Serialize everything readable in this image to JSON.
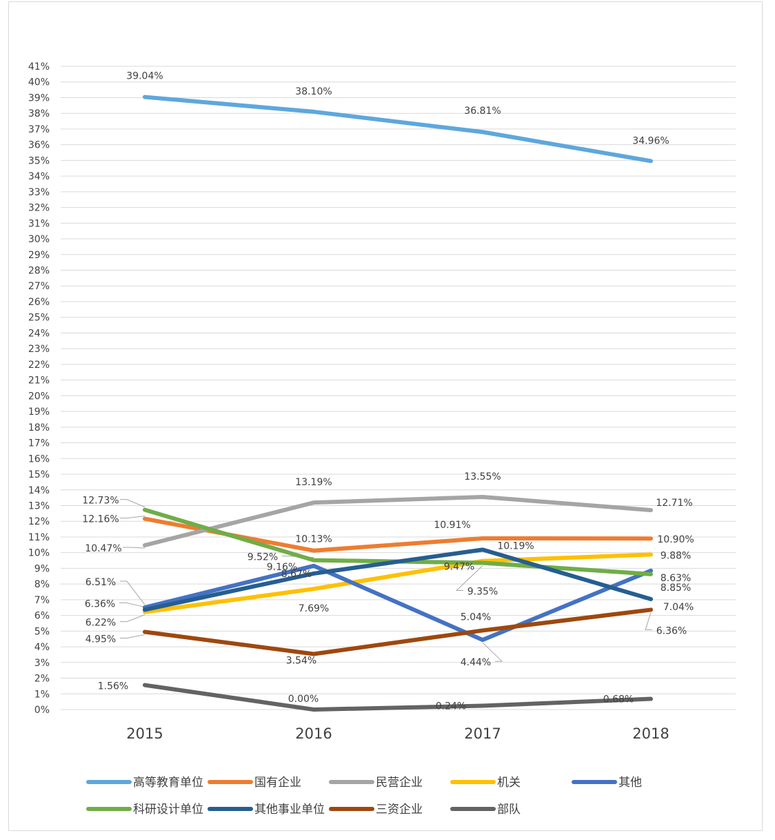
{
  "chart_data": {
    "type": "line",
    "categories": [
      "2015",
      "2016",
      "2017",
      "2018"
    ],
    "ylim": [
      0,
      41
    ],
    "y_tick_step": 1,
    "y_tick_format": "percent",
    "grid": true,
    "legend_position": "bottom",
    "series": [
      {
        "name": "高等教育单位",
        "color": "#5ea7dc",
        "values": [
          39.04,
          38.1,
          36.81,
          34.96
        ],
        "labels": [
          "39.04%",
          "38.10%",
          "36.81%",
          "34.96%"
        ]
      },
      {
        "name": "国有企业",
        "color": "#ed7d31",
        "values": [
          12.16,
          10.13,
          10.91,
          10.9
        ],
        "labels": [
          "12.16%",
          "10.13%",
          "10.91%",
          "10.90%"
        ]
      },
      {
        "name": "民营企业",
        "color": "#a5a5a5",
        "values": [
          10.47,
          13.19,
          13.55,
          12.71
        ],
        "labels": [
          "10.47%",
          "13.19%",
          "13.55%",
          "12.71%"
        ]
      },
      {
        "name": "机关",
        "color": "#ffc000",
        "values": [
          6.22,
          7.69,
          9.47,
          9.88
        ],
        "labels": [
          "6.22%",
          "7.69%",
          "9.47%",
          "9.88%"
        ]
      },
      {
        "name": "其他",
        "color": "#4472c4",
        "values": [
          6.51,
          9.16,
          4.44,
          8.85
        ],
        "labels": [
          "6.51%",
          "9.16%",
          "4.44%",
          "8.85%"
        ]
      },
      {
        "name": "科研设计单位",
        "color": "#70ad47",
        "values": [
          12.73,
          9.52,
          9.35,
          8.63
        ],
        "labels": [
          "12.73%",
          "9.52%",
          "9.35%",
          "8.63%"
        ]
      },
      {
        "name": "其他事业单位",
        "color": "#255e91",
        "values": [
          6.36,
          8.67,
          10.19,
          7.04
        ],
        "labels": [
          "6.36%",
          "8.67%",
          "10.19%",
          "7.04%"
        ]
      },
      {
        "name": "三资企业",
        "color": "#9e480e",
        "values": [
          4.95,
          3.54,
          5.04,
          6.36
        ],
        "labels": [
          "4.95%",
          "3.54%",
          "5.04%",
          "6.36%"
        ]
      },
      {
        "name": "部队",
        "color": "#636363",
        "values": [
          1.56,
          0.0,
          0.24,
          0.68
        ],
        "labels": [
          "1.56%",
          "0.00%",
          "0.24%",
          "0.68%"
        ]
      }
    ]
  }
}
